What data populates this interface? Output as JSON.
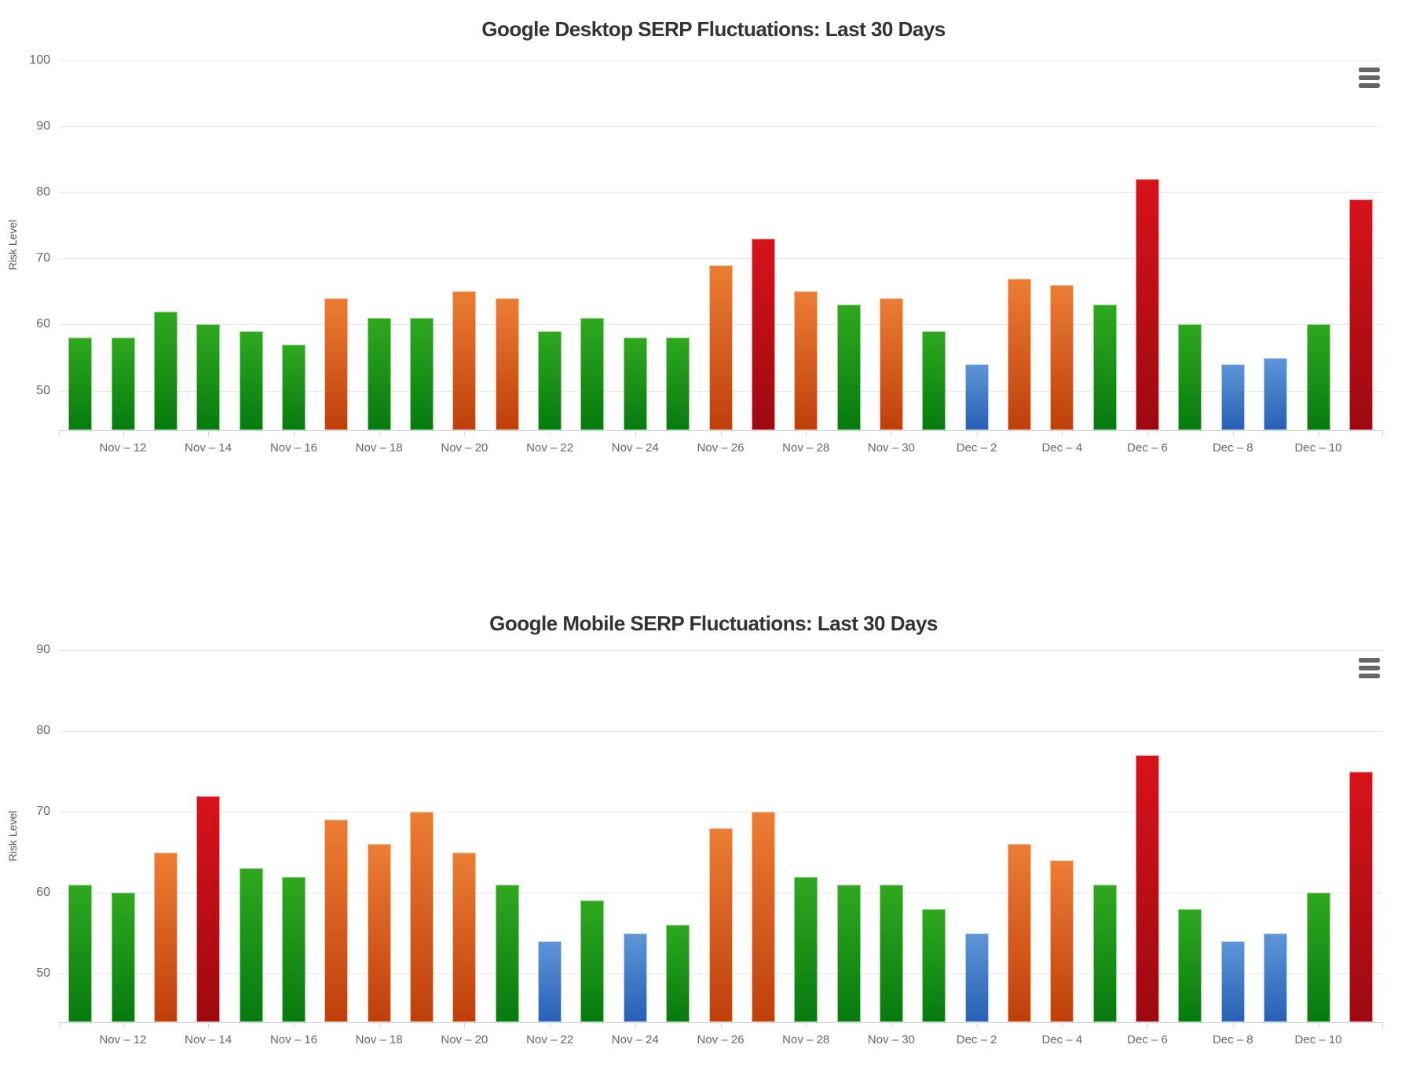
{
  "palette": {
    "green": {
      "top": "#2fa81f",
      "bottom": "#077a10",
      "border": "#8fd687"
    },
    "orange": {
      "top": "#ec7d33",
      "bottom": "#bf3f0b",
      "border": "#f5c09a"
    },
    "red": {
      "top": "#d8131a",
      "bottom": "#9d0910",
      "border": "#ef9a9d"
    },
    "blue": {
      "top": "#5e95d8",
      "bottom": "#2860b5",
      "border": "#b3cdeb"
    }
  },
  "icons": {
    "context_menu": "hamburger-menu-icon"
  },
  "chart_data": [
    {
      "type": "bar",
      "title": "Google Desktop SERP Fluctuations: Last 30 Days",
      "xlabel": "",
      "ylabel": "Risk Level",
      "ylim": [
        44,
        100
      ],
      "yticks": [
        50,
        60,
        70,
        80,
        90,
        100
      ],
      "grid": true,
      "legend": false,
      "categories": [
        "Nov 11",
        "Nov 12",
        "Nov 13",
        "Nov 14",
        "Nov 15",
        "Nov 16",
        "Nov 17",
        "Nov 18",
        "Nov 19",
        "Nov 20",
        "Nov 21",
        "Nov 22",
        "Nov 23",
        "Nov 24",
        "Nov 25",
        "Nov 26",
        "Nov 27",
        "Nov 28",
        "Nov 29",
        "Nov 30",
        "Dec 1",
        "Dec 2",
        "Dec 3",
        "Dec 4",
        "Dec 5",
        "Dec 6",
        "Dec 7",
        "Dec 8",
        "Dec 9",
        "Dec 10",
        "Dec 11"
      ],
      "values": [
        58,
        58,
        62,
        60,
        59,
        57,
        64,
        61,
        61,
        65,
        64,
        59,
        61,
        58,
        58,
        69,
        73,
        65,
        63,
        64,
        59,
        54,
        67,
        66,
        63,
        82,
        60,
        54,
        55,
        60,
        79
      ],
      "colors": [
        "green",
        "green",
        "green",
        "green",
        "green",
        "green",
        "orange",
        "green",
        "green",
        "orange",
        "orange",
        "green",
        "green",
        "green",
        "green",
        "orange",
        "red",
        "orange",
        "green",
        "orange",
        "green",
        "blue",
        "orange",
        "orange",
        "green",
        "red",
        "green",
        "blue",
        "blue",
        "green",
        "red"
      ],
      "tick_labels": [
        "Nov – 12",
        "Nov – 14",
        "Nov – 16",
        "Nov – 18",
        "Nov – 20",
        "Nov – 22",
        "Nov – 24",
        "Nov – 26",
        "Nov – 28",
        "Nov – 30",
        "Dec – 2",
        "Dec – 4",
        "Dec – 6",
        "Dec – 8",
        "Dec – 10"
      ]
    },
    {
      "type": "bar",
      "title": "Google Mobile SERP Fluctuations: Last 30 Days",
      "xlabel": "",
      "ylabel": "Risk Level",
      "ylim": [
        44,
        90
      ],
      "yticks": [
        50,
        60,
        70,
        80,
        90
      ],
      "grid": true,
      "legend": false,
      "categories": [
        "Nov 11",
        "Nov 12",
        "Nov 13",
        "Nov 14",
        "Nov 15",
        "Nov 16",
        "Nov 17",
        "Nov 18",
        "Nov 19",
        "Nov 20",
        "Nov 21",
        "Nov 22",
        "Nov 23",
        "Nov 24",
        "Nov 25",
        "Nov 26",
        "Nov 27",
        "Nov 28",
        "Nov 29",
        "Nov 30",
        "Dec 1",
        "Dec 2",
        "Dec 3",
        "Dec 4",
        "Dec 5",
        "Dec 6",
        "Dec 7",
        "Dec 8",
        "Dec 9",
        "Dec 10",
        "Dec 11"
      ],
      "values": [
        61,
        60,
        65,
        72,
        63,
        62,
        69,
        66,
        70,
        65,
        61,
        54,
        59,
        55,
        56,
        68,
        70,
        62,
        61,
        61,
        58,
        55,
        66,
        64,
        61,
        77,
        58,
        54,
        55,
        60,
        75
      ],
      "colors": [
        "green",
        "green",
        "orange",
        "red",
        "green",
        "green",
        "orange",
        "orange",
        "orange",
        "orange",
        "green",
        "blue",
        "green",
        "blue",
        "green",
        "orange",
        "orange",
        "green",
        "green",
        "green",
        "green",
        "blue",
        "orange",
        "orange",
        "green",
        "red",
        "green",
        "blue",
        "blue",
        "green",
        "red"
      ],
      "tick_labels": [
        "Nov – 12",
        "Nov – 14",
        "Nov – 16",
        "Nov – 18",
        "Nov – 20",
        "Nov – 22",
        "Nov – 24",
        "Nov – 26",
        "Nov – 28",
        "Nov – 30",
        "Dec – 2",
        "Dec – 4",
        "Dec – 6",
        "Dec – 8",
        "Dec – 10"
      ]
    }
  ]
}
